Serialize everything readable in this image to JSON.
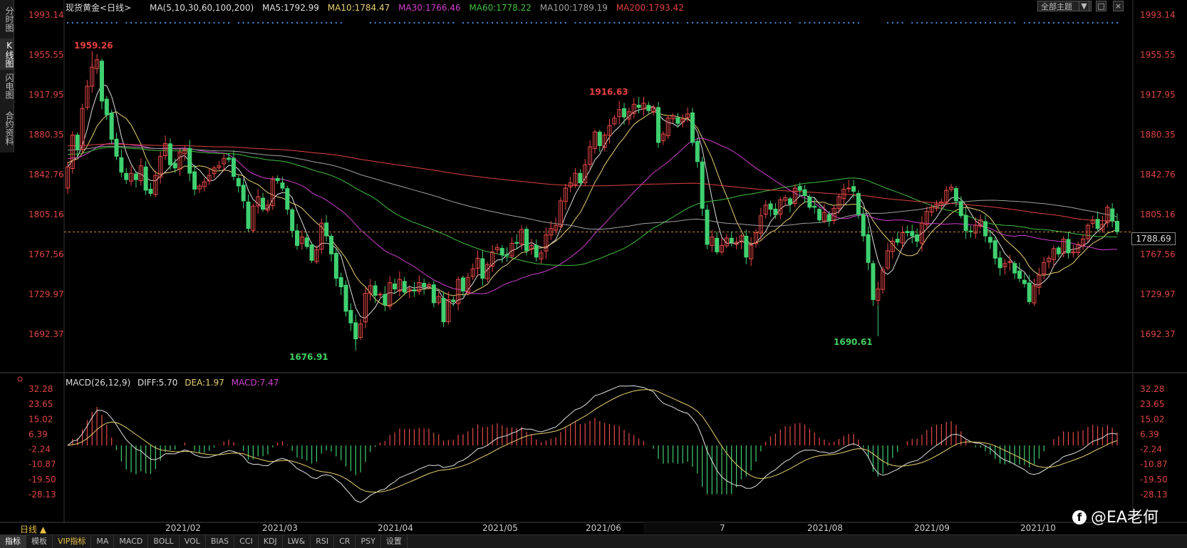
{
  "side_tabs": [
    {
      "label": "分时图",
      "active": false
    },
    {
      "label": "K线图",
      "active": true
    },
    {
      "label": "闪电图",
      "active": false
    },
    {
      "label": "合约资料",
      "active": false
    }
  ],
  "header": {
    "title": "现货黄金",
    "period": "<日线>",
    "ma_params": "MA(5,10,30,60,100,200)",
    "ma": [
      {
        "label": "MA5:1792.99",
        "color": "#e0e0e0"
      },
      {
        "label": "MA10:1784.47",
        "color": "#e8d070"
      },
      {
        "label": "MA30:1766.46",
        "color": "#d040d0"
      },
      {
        "label": "MA60:1778.22",
        "color": "#40c040"
      },
      {
        "label": "MA100:1789.19",
        "color": "#a0a0a0"
      },
      {
        "label": "MA200:1793.42",
        "color": "#e04040"
      }
    ],
    "theme_button": "全部主题",
    "window_buttons": [
      "▼",
      "□",
      "×"
    ]
  },
  "price_axis": [
    "1993.14",
    "1955.55",
    "1917.95",
    "1880.35",
    "1842.76",
    "1805.16",
    "1767.56",
    "1729.97",
    "1692.37"
  ],
  "current_price": "1788.69",
  "annotations": {
    "high1": "1959.26",
    "high2": "1916.63",
    "low1": "1676.91",
    "low2": "1690.61"
  },
  "macd": {
    "label": "MACD(26,12,9)",
    "diff": "DIFF:5.70",
    "dea": "DEA:1.97",
    "macd_val": "MACD:7.47",
    "axis": [
      "32.28",
      "23.65",
      "15.02",
      "6.39",
      "-2.24",
      "-10.87",
      "-19.50",
      "-28.13"
    ]
  },
  "x_axis": {
    "period_button": "日线 ▲",
    "labels": [
      "2021/02",
      "2021/03",
      "2021/04",
      "2021/05",
      "2021/06",
      "7",
      "2021/08",
      "2021/09",
      "2021/10"
    ]
  },
  "bottom_tabs": [
    "指标",
    "模板",
    "VIP指标",
    "MA",
    "MACD",
    "BOLL",
    "VOL",
    "BIAS",
    "CCI",
    "KDJ",
    "LW&",
    "RSI",
    "CR",
    "PSY",
    "设置"
  ],
  "watermark": {
    "logo": "f",
    "text": "@EA老何"
  },
  "chart_data": {
    "type": "candlestick",
    "title": "现货黄金<日线>",
    "ylim": [
      1670,
      2000
    ],
    "series_close": [
      1850,
      1880,
      1866,
      1905,
      1926,
      1944,
      1951,
      1912,
      1899,
      1876,
      1860,
      1845,
      1838,
      1844,
      1838,
      1851,
      1828,
      1825,
      1842,
      1860,
      1872,
      1852,
      1849,
      1864,
      1866,
      1844,
      1829,
      1832,
      1836,
      1842,
      1849,
      1851,
      1858,
      1857,
      1841,
      1832,
      1818,
      1792,
      1813,
      1822,
      1810,
      1814,
      1838,
      1837,
      1830,
      1810,
      1790,
      1776,
      1784,
      1775,
      1762,
      1772,
      1797,
      1785,
      1768,
      1745,
      1737,
      1714,
      1703,
      1688,
      1702,
      1731,
      1738,
      1729,
      1730,
      1720,
      1741,
      1735,
      1744,
      1732,
      1735,
      1733,
      1741,
      1737,
      1739,
      1722,
      1728,
      1704,
      1725,
      1723,
      1744,
      1733,
      1746,
      1754,
      1764,
      1745,
      1758,
      1770,
      1774,
      1767,
      1767,
      1778,
      1778,
      1791,
      1771,
      1776,
      1765,
      1769,
      1786,
      1792,
      1795,
      1818,
      1830,
      1835,
      1844,
      1835,
      1852,
      1869,
      1883,
      1870,
      1880,
      1889,
      1896,
      1904,
      1897,
      1902,
      1909,
      1906,
      1910,
      1903,
      1906,
      1873,
      1881,
      1896,
      1898,
      1891,
      1895,
      1900,
      1873,
      1855,
      1811,
      1777,
      1784,
      1770,
      1776,
      1783,
      1779,
      1779,
      1785,
      1765,
      1776,
      1788,
      1804,
      1814,
      1810,
      1805,
      1819,
      1821,
      1815,
      1830,
      1828,
      1823,
      1812,
      1812,
      1800,
      1807,
      1799,
      1811,
      1822,
      1829,
      1830,
      1827,
      1805,
      1785,
      1760,
      1725,
      1735,
      1753,
      1771,
      1780,
      1779,
      1788,
      1788,
      1785,
      1780,
      1797,
      1808,
      1812,
      1815,
      1817,
      1828,
      1831,
      1818,
      1804,
      1790,
      1789,
      1795,
      1800,
      1785,
      1779,
      1764,
      1755,
      1759,
      1761,
      1750,
      1745,
      1740,
      1723,
      1738,
      1748,
      1760,
      1764,
      1773,
      1768,
      1782,
      1769,
      1770,
      1777,
      1782,
      1795,
      1800,
      1792,
      1796,
      1812,
      1799,
      1789
    ]
  }
}
